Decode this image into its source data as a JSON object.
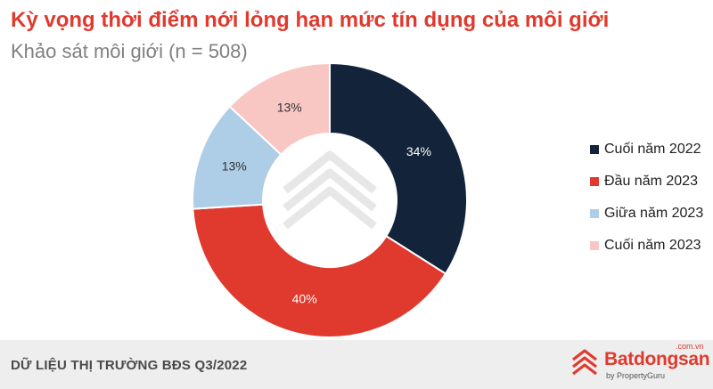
{
  "chart": {
    "title": "Kỳ vọng thời điểm nới lỏng hạn mức tín dụng của môi giới",
    "subtitle": "Khảo sát môi giới (n = 508)"
  },
  "chart_data": {
    "type": "pie",
    "variant": "donut",
    "unit": "%",
    "categories": [
      "Cuối năm 2022",
      "Đầu năm 2023",
      "Giữa năm 2023",
      "Cuối năm 2023"
    ],
    "values": [
      34,
      40,
      13,
      13
    ],
    "labels": [
      "34%",
      "40%",
      "13%",
      "13%"
    ],
    "colors": [
      "#12233a",
      "#e03a2e",
      "#aecde6",
      "#f8c7c4"
    ],
    "label_colors": [
      "#ffffff",
      "#ffffff",
      "#333333",
      "#333333"
    ],
    "start": "12 o'clock",
    "direction": "clockwise",
    "legend_position": "right"
  },
  "footer": {
    "source_text": "DỮ LIỆU THỊ TRƯỜNG BĐS Q3/2022",
    "brand_name": "Batdongsan",
    "brand_domain": ".com.vn",
    "brand_by": "by PropertyGuru"
  },
  "icons": {
    "watermark": "batdongsan-logo-watermark",
    "brand": "batdongsan-logo-icon"
  }
}
